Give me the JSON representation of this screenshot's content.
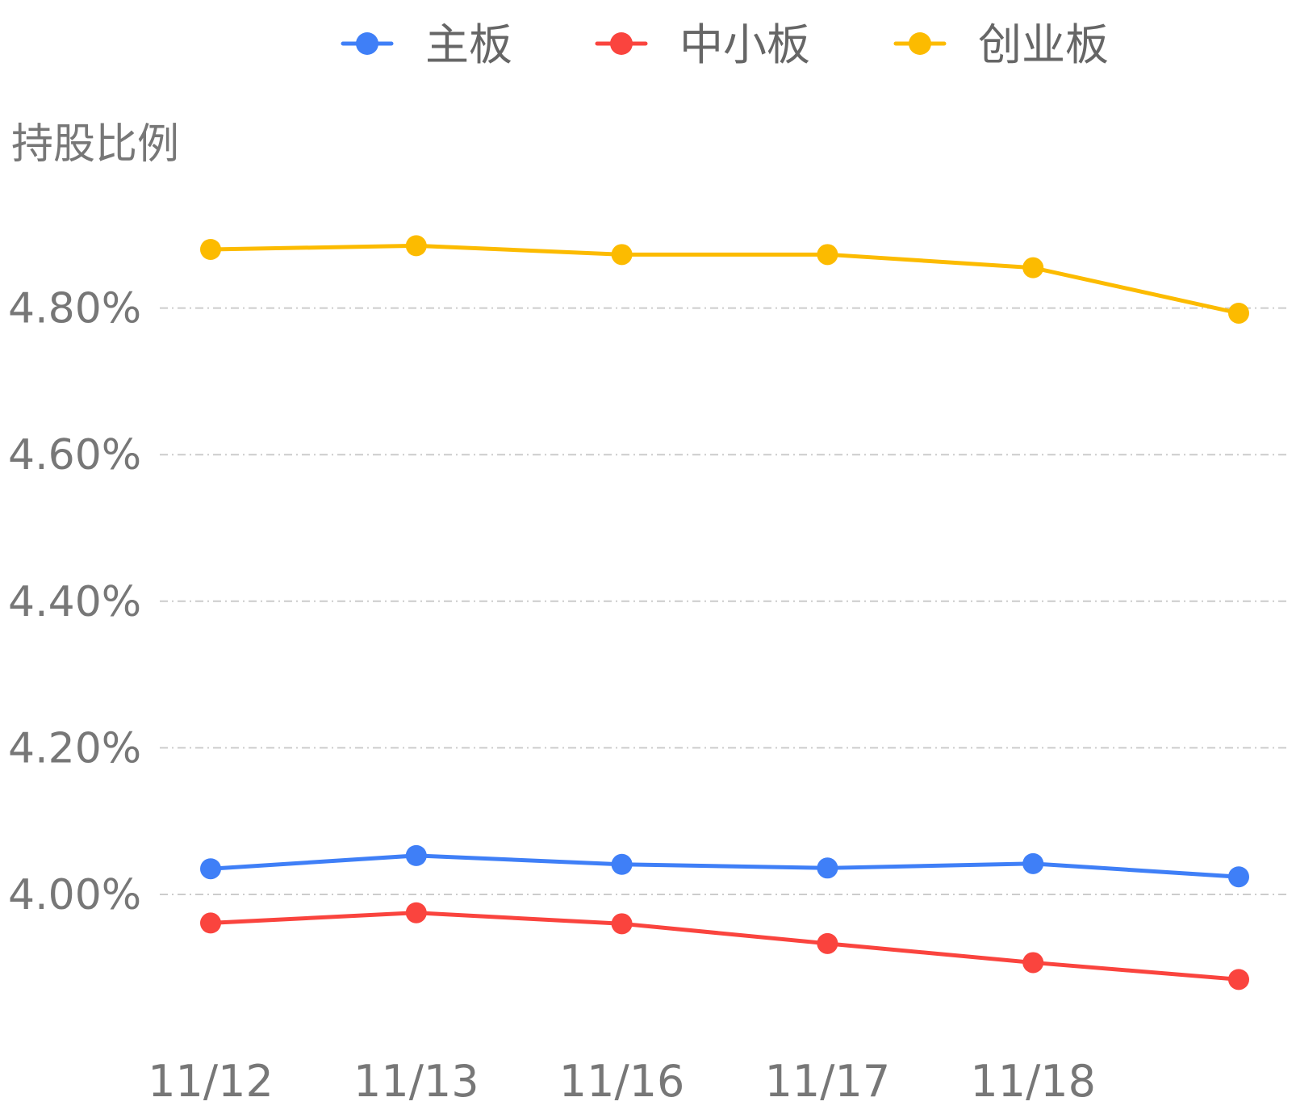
{
  "chart_data": {
    "type": "line",
    "ylabel": "持股比例",
    "categories": [
      "11/12",
      "11/13",
      "11/16",
      "11/17",
      "11/18",
      ""
    ],
    "yticks": [
      4.0,
      4.2,
      4.4,
      4.6,
      4.8
    ],
    "ytick_labels": [
      "4.00%",
      "4.20%",
      "4.40%",
      "4.60%",
      "4.80%"
    ],
    "ylim": [
      3.8,
      5.0
    ],
    "grid": true,
    "legend_position": "top-center",
    "series": [
      {
        "name": "主板",
        "color": "#3f7ff7",
        "values": [
          4.035,
          4.053,
          4.041,
          4.036,
          4.042,
          4.024
        ]
      },
      {
        "name": "中小板",
        "color": "#fa443e",
        "values": [
          3.961,
          3.975,
          3.96,
          3.933,
          3.907,
          3.884
        ]
      },
      {
        "name": "创业板",
        "color": "#fcbb00",
        "values": [
          4.88,
          4.885,
          4.873,
          4.873,
          4.855,
          4.793
        ]
      }
    ]
  }
}
